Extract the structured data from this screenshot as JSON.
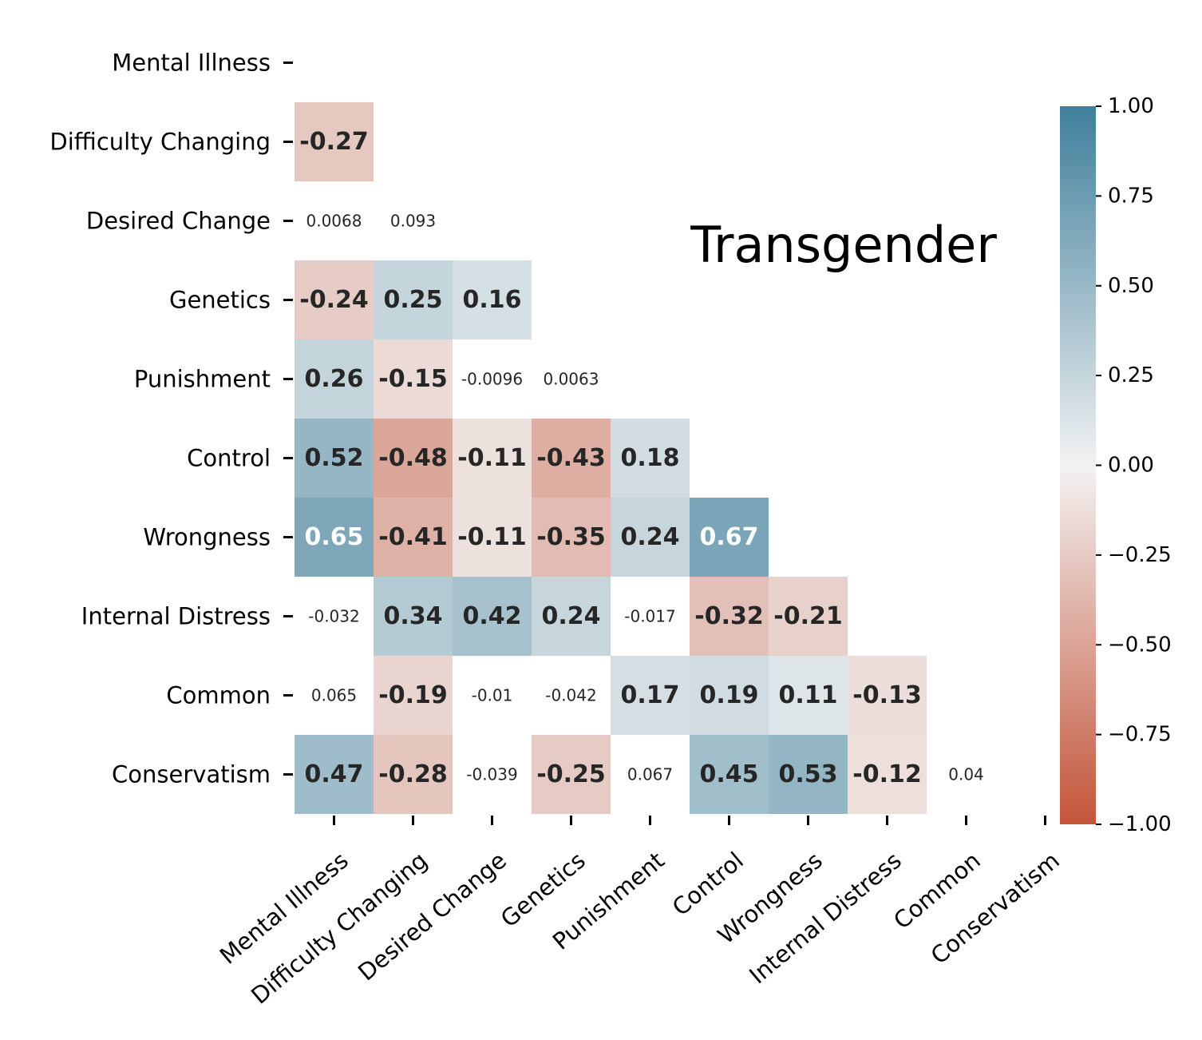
{
  "chart_data": {
    "type": "heatmap",
    "title": "Transgender",
    "variables": [
      "Mental Illness",
      "Difficulty Changing",
      "Desired Change",
      "Genetics",
      "Punishment",
      "Control",
      "Wrongness",
      "Internal Distress",
      "Common",
      "Conservatism"
    ],
    "mask": "upper-triangle-and-diagonal",
    "significance_threshold": 0.1,
    "cells": [
      {
        "row": 1,
        "col": 0,
        "value": -0.27,
        "label": "-0.27"
      },
      {
        "row": 2,
        "col": 0,
        "value": 0.0068,
        "label": "0.0068"
      },
      {
        "row": 2,
        "col": 1,
        "value": 0.093,
        "label": "0.093"
      },
      {
        "row": 3,
        "col": 0,
        "value": -0.24,
        "label": "-0.24"
      },
      {
        "row": 3,
        "col": 1,
        "value": 0.25,
        "label": "0.25"
      },
      {
        "row": 3,
        "col": 2,
        "value": 0.16,
        "label": "0.16"
      },
      {
        "row": 4,
        "col": 0,
        "value": 0.26,
        "label": "0.26"
      },
      {
        "row": 4,
        "col": 1,
        "value": -0.15,
        "label": "-0.15"
      },
      {
        "row": 4,
        "col": 2,
        "value": -0.0096,
        "label": "-0.0096"
      },
      {
        "row": 4,
        "col": 3,
        "value": 0.0063,
        "label": "0.0063"
      },
      {
        "row": 5,
        "col": 0,
        "value": 0.52,
        "label": "0.52"
      },
      {
        "row": 5,
        "col": 1,
        "value": -0.48,
        "label": "-0.48"
      },
      {
        "row": 5,
        "col": 2,
        "value": -0.11,
        "label": "-0.11"
      },
      {
        "row": 5,
        "col": 3,
        "value": -0.43,
        "label": "-0.43"
      },
      {
        "row": 5,
        "col": 4,
        "value": 0.18,
        "label": "0.18"
      },
      {
        "row": 6,
        "col": 0,
        "value": 0.65,
        "label": "0.65"
      },
      {
        "row": 6,
        "col": 1,
        "value": -0.41,
        "label": "-0.41"
      },
      {
        "row": 6,
        "col": 2,
        "value": -0.11,
        "label": "-0.11"
      },
      {
        "row": 6,
        "col": 3,
        "value": -0.35,
        "label": "-0.35"
      },
      {
        "row": 6,
        "col": 4,
        "value": 0.24,
        "label": "0.24"
      },
      {
        "row": 6,
        "col": 5,
        "value": 0.67,
        "label": "0.67"
      },
      {
        "row": 7,
        "col": 0,
        "value": -0.032,
        "label": "-0.032"
      },
      {
        "row": 7,
        "col": 1,
        "value": 0.34,
        "label": "0.34"
      },
      {
        "row": 7,
        "col": 2,
        "value": 0.42,
        "label": "0.42"
      },
      {
        "row": 7,
        "col": 3,
        "value": 0.24,
        "label": "0.24"
      },
      {
        "row": 7,
        "col": 4,
        "value": -0.017,
        "label": "-0.017"
      },
      {
        "row": 7,
        "col": 5,
        "value": -0.32,
        "label": "-0.32"
      },
      {
        "row": 7,
        "col": 6,
        "value": -0.21,
        "label": "-0.21"
      },
      {
        "row": 8,
        "col": 0,
        "value": 0.065,
        "label": "0.065"
      },
      {
        "row": 8,
        "col": 1,
        "value": -0.19,
        "label": "-0.19"
      },
      {
        "row": 8,
        "col": 2,
        "value": -0.01,
        "label": "-0.01"
      },
      {
        "row": 8,
        "col": 3,
        "value": -0.042,
        "label": "-0.042"
      },
      {
        "row": 8,
        "col": 4,
        "value": 0.17,
        "label": "0.17"
      },
      {
        "row": 8,
        "col": 5,
        "value": 0.19,
        "label": "0.19"
      },
      {
        "row": 8,
        "col": 6,
        "value": 0.11,
        "label": "0.11"
      },
      {
        "row": 8,
        "col": 7,
        "value": -0.13,
        "label": "-0.13"
      },
      {
        "row": 9,
        "col": 0,
        "value": 0.47,
        "label": "0.47"
      },
      {
        "row": 9,
        "col": 1,
        "value": -0.28,
        "label": "-0.28"
      },
      {
        "row": 9,
        "col": 2,
        "value": -0.039,
        "label": "-0.039"
      },
      {
        "row": 9,
        "col": 3,
        "value": -0.25,
        "label": "-0.25"
      },
      {
        "row": 9,
        "col": 4,
        "value": 0.067,
        "label": "0.067"
      },
      {
        "row": 9,
        "col": 5,
        "value": 0.45,
        "label": "0.45"
      },
      {
        "row": 9,
        "col": 6,
        "value": 0.53,
        "label": "0.53"
      },
      {
        "row": 9,
        "col": 7,
        "value": -0.12,
        "label": "-0.12"
      },
      {
        "row": 9,
        "col": 8,
        "value": 0.04,
        "label": "0.04"
      }
    ],
    "colorbar": {
      "range": [
        -1.0,
        1.0
      ],
      "ticks": [
        1.0,
        0.75,
        0.5,
        0.25,
        0.0,
        -0.25,
        -0.5,
        -0.75,
        -1.0
      ],
      "tick_labels": [
        "1.00",
        "0.75",
        "0.50",
        "0.25",
        "0.00",
        "−0.25",
        "−0.50",
        "−0.75",
        "−1.00"
      ],
      "colormap": "diverging",
      "negative_color": "#c3553a",
      "neutral_color": "#f2f2f2",
      "positive_color": "#3f7f9b"
    },
    "colors": {
      "text_dark": "#262626",
      "text_light": "#ffffff",
      "tick_color": "#000000"
    }
  }
}
